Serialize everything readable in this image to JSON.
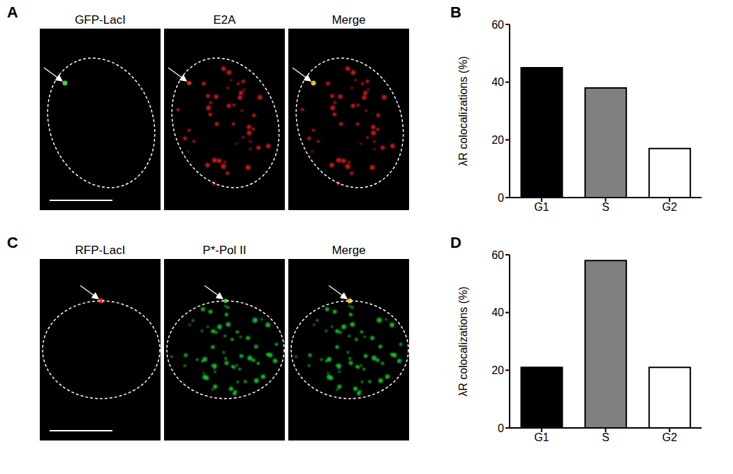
{
  "chart_data": [
    {
      "type": "bar",
      "panel_label": "B",
      "categories": [
        "G1",
        "S",
        "G2"
      ],
      "values": [
        45,
        38,
        17
      ],
      "colors": [
        "#000000",
        "#808080",
        "#ffffff"
      ],
      "y_label": "λR colocalizations (%)",
      "ylim": [
        0,
        60
      ],
      "yticks": [
        0,
        20,
        40,
        60
      ]
    },
    {
      "type": "bar",
      "panel_label": "D",
      "categories": [
        "G1",
        "S",
        "G2"
      ],
      "values": [
        21,
        58,
        21
      ],
      "colors": [
        "#000000",
        "#808080",
        "#ffffff"
      ],
      "y_label": "λR colocalizations (%)",
      "ylim": [
        0,
        60
      ],
      "yticks": [
        0,
        20,
        40,
        60
      ]
    }
  ],
  "images": [
    {
      "panel_label": "A",
      "labels": [
        "GFP-LacI",
        "E2A",
        "Merge"
      ]
    },
    {
      "panel_label": "C",
      "labels": [
        "RFP-LacI",
        "P*-Pol II",
        "Merge"
      ]
    }
  ]
}
